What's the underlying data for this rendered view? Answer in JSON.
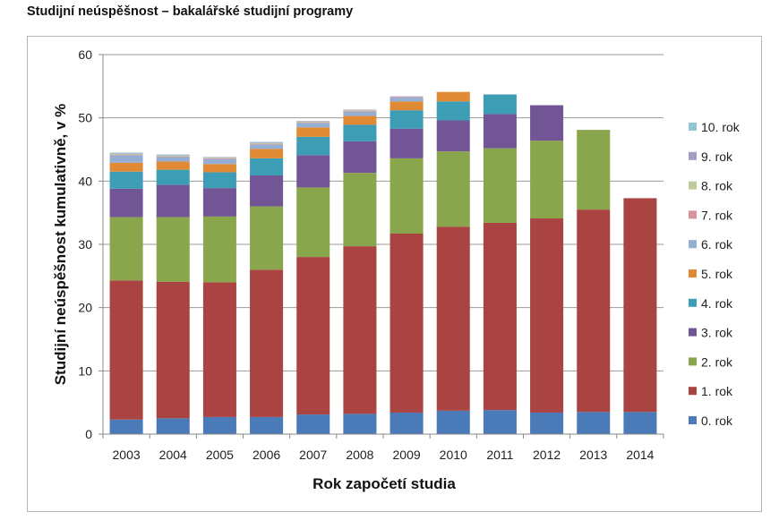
{
  "page": {
    "title": "Studijní neúspěšnost – bakalářské studijní programy"
  },
  "chart_data": {
    "type": "bar",
    "stacked": true,
    "title": "Studijní neúspěšnost – bakalářské studijní programy",
    "xlabel": "Rok započetí studia",
    "ylabel": "Studijní neúspěšnost kumulativně, v %",
    "ylim": [
      0,
      60
    ],
    "yticks": [
      0,
      10,
      20,
      30,
      40,
      50,
      60
    ],
    "grid": true,
    "legend_position": "right",
    "categories": [
      "2003",
      "2004",
      "2005",
      "2006",
      "2007",
      "2008",
      "2009",
      "2010",
      "2011",
      "2012",
      "2013",
      "2014"
    ],
    "series": [
      {
        "name": "0. rok",
        "color": "#4a7ab7",
        "values": [
          2.3,
          2.5,
          2.7,
          2.7,
          3.1,
          3.2,
          3.4,
          3.7,
          3.8,
          3.4,
          3.5,
          3.5
        ]
      },
      {
        "name": "1. rok",
        "color": "#aa4442",
        "values": [
          22.0,
          21.6,
          21.3,
          23.3,
          24.9,
          26.5,
          28.3,
          29.1,
          29.6,
          30.7,
          32.0,
          33.8
        ]
      },
      {
        "name": "2. rok",
        "color": "#8aa64c",
        "values": [
          10.0,
          10.2,
          10.4,
          10.0,
          11.0,
          11.6,
          11.9,
          11.9,
          11.8,
          12.3,
          12.6,
          0
        ]
      },
      {
        "name": "3. rok",
        "color": "#715594",
        "values": [
          4.5,
          5.1,
          4.5,
          4.9,
          5.1,
          5.0,
          4.7,
          4.9,
          5.4,
          5.6,
          0,
          0
        ]
      },
      {
        "name": "4. rok",
        "color": "#3d9db5",
        "values": [
          2.7,
          2.4,
          2.5,
          2.7,
          2.9,
          2.6,
          2.9,
          3.0,
          3.1,
          0,
          0,
          0
        ]
      },
      {
        "name": "5. rok",
        "color": "#e08a35",
        "values": [
          1.4,
          1.3,
          1.3,
          1.5,
          1.5,
          1.4,
          1.4,
          1.5,
          0,
          0,
          0,
          0
        ]
      },
      {
        "name": "6. rok",
        "color": "#95aed3",
        "values": [
          1.2,
          0.7,
          0.8,
          0.7,
          0.7,
          0.7,
          0.6,
          0,
          0,
          0,
          0,
          0
        ]
      },
      {
        "name": "7. rok",
        "color": "#d9939a",
        "values": [
          0.1,
          0.1,
          0.1,
          0.1,
          0.1,
          0.1,
          0.1,
          0,
          0,
          0,
          0,
          0
        ]
      },
      {
        "name": "8. rok",
        "color": "#bccc98",
        "values": [
          0.1,
          0.1,
          0.1,
          0.1,
          0.1,
          0.1,
          0,
          0,
          0,
          0,
          0,
          0
        ]
      },
      {
        "name": "9. rok",
        "color": "#a39ec2",
        "values": [
          0.1,
          0.1,
          0.1,
          0.1,
          0.1,
          0.1,
          0.1,
          0,
          0,
          0,
          0,
          0
        ]
      },
      {
        "name": "10. rok",
        "color": "#92c6d6",
        "values": [
          0.1,
          0.1,
          0,
          0.1,
          0,
          0,
          0,
          0,
          0,
          0,
          0,
          0
        ]
      }
    ]
  }
}
